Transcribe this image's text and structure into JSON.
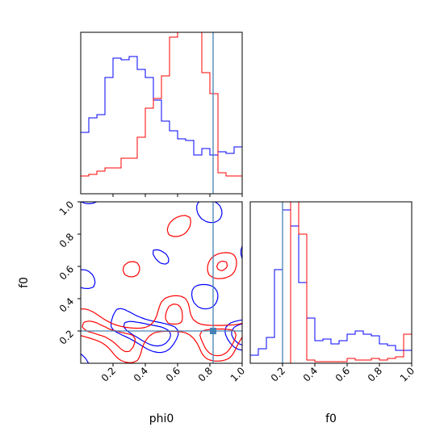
{
  "chart_data": [
    {
      "type": "histogram",
      "panel": "top-left",
      "parameter": "phi0",
      "xlim": [
        0,
        1
      ],
      "series": [
        {
          "color": "#0000ff",
          "bin_edges": [
            0,
            0.05,
            0.1,
            0.15,
            0.2,
            0.25,
            0.3,
            0.35,
            0.4,
            0.45,
            0.5,
            0.55,
            0.6,
            0.65,
            0.7,
            0.75,
            0.8,
            0.85,
            0.9,
            0.95,
            1.0
          ],
          "values": [
            0.38,
            0.47,
            0.49,
            0.72,
            0.84,
            0.83,
            0.85,
            0.77,
            0.72,
            0.58,
            0.45,
            0.39,
            0.34,
            0.33,
            0.24,
            0.28,
            0.24,
            0.26,
            0.25,
            0.29
          ]
        },
        {
          "color": "#ff0000",
          "bin_edges": [
            0,
            0.05,
            0.1,
            0.15,
            0.2,
            0.25,
            0.3,
            0.35,
            0.4,
            0.45,
            0.5,
            0.55,
            0.6,
            0.65,
            0.7,
            0.75,
            0.8,
            0.85,
            0.9,
            0.95,
            1.0
          ],
          "values": [
            0.11,
            0.12,
            0.14,
            0.16,
            0.16,
            0.22,
            0.22,
            0.35,
            0.53,
            0.59,
            0.73,
            0.97,
            1.05,
            1.05,
            1.05,
            0.75,
            0.62,
            0.13,
            0.11,
            0.11
          ]
        }
      ],
      "marker_line_x": 0.82
    },
    {
      "type": "contour",
      "panel": "bottom-left",
      "xlabel": "phi0",
      "ylabel": "f0",
      "xlim": [
        0,
        1
      ],
      "ylim": [
        0,
        1
      ],
      "xticks": [
        "0.2",
        "0.4",
        "0.6",
        "0.8",
        "1.0"
      ],
      "yticks": [
        "0.2",
        "0.4",
        "0.6",
        "0.8",
        "1.0"
      ],
      "series_colors": [
        "#0000ff",
        "#ff0000"
      ],
      "marker_point": {
        "x": 0.82,
        "y": 0.2
      }
    },
    {
      "type": "histogram",
      "panel": "bottom-right",
      "xlabel": "f0",
      "xlim": [
        0,
        1
      ],
      "xticks": [
        "0.2",
        "0.4",
        "0.6",
        "0.8",
        "1.0"
      ],
      "series": [
        {
          "color": "#0000ff",
          "bin_edges": [
            0,
            0.05,
            0.1,
            0.15,
            0.2,
            0.25,
            0.3,
            0.35,
            0.4,
            0.45,
            0.5,
            0.55,
            0.6,
            0.65,
            0.7,
            0.75,
            0.8,
            0.85,
            0.9,
            0.95,
            1.0
          ],
          "values": [
            0.05,
            0.09,
            0.16,
            0.58,
            0.95,
            0.85,
            0.5,
            0.28,
            0.14,
            0.15,
            0.12,
            0.14,
            0.18,
            0.2,
            0.18,
            0.17,
            0.12,
            0.11,
            0.08,
            0.08
          ]
        },
        {
          "color": "#ff0000",
          "bin_edges": [
            0,
            0.05,
            0.1,
            0.15,
            0.2,
            0.25,
            0.3,
            0.35,
            0.4,
            0.45,
            0.5,
            0.55,
            0.6,
            0.65,
            0.7,
            0.75,
            0.8,
            0.85,
            0.9,
            0.95,
            1.0
          ],
          "values": [
            0,
            0,
            0,
            0,
            0,
            1.05,
            0.8,
            0.02,
            0.01,
            0.01,
            0.01,
            0.01,
            0.03,
            0.02,
            0.02,
            0.03,
            0.02,
            0.03,
            0.04,
            0.18
          ]
        }
      ],
      "marker_line_x": 0.2
    }
  ],
  "colors": {
    "marker": "#4682b4",
    "blue": "#0000ff",
    "red": "#ff0000"
  }
}
